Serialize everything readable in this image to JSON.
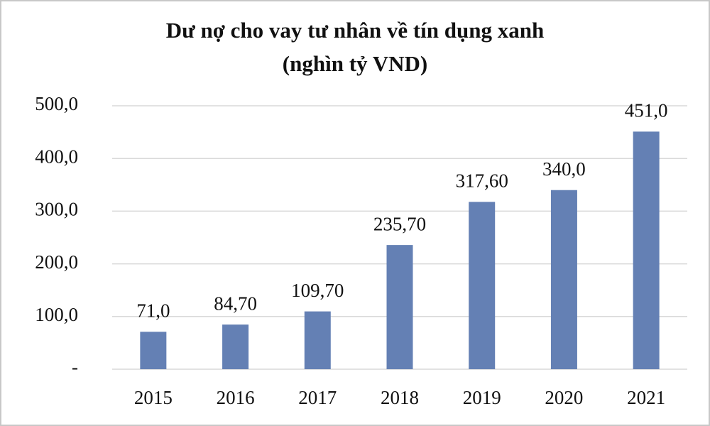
{
  "chart_data": {
    "type": "bar",
    "title": "Dư nợ cho vay tư nhân về tín dụng xanh",
    "subtitle": "(nghìn tỷ VND)",
    "categories": [
      "2015",
      "2016",
      "2017",
      "2018",
      "2019",
      "2020",
      "2021"
    ],
    "values": [
      71,
      84.7,
      109.7,
      235.7,
      317.6,
      340,
      451
    ],
    "value_labels": [
      "71,0",
      "84,70",
      "109,70",
      "235,70",
      "317,60",
      "340,0",
      "451,0"
    ],
    "color": "#6480b4",
    "ylim": [
      0,
      500
    ],
    "yticks": [
      {
        "value": 0,
        "label": "-"
      },
      {
        "value": 100,
        "label": "100,0"
      },
      {
        "value": 200,
        "label": "200,0"
      },
      {
        "value": 300,
        "label": "300,0"
      },
      {
        "value": 400,
        "label": "400,0"
      },
      {
        "value": 500,
        "label": "500,0"
      }
    ],
    "grid": true
  }
}
